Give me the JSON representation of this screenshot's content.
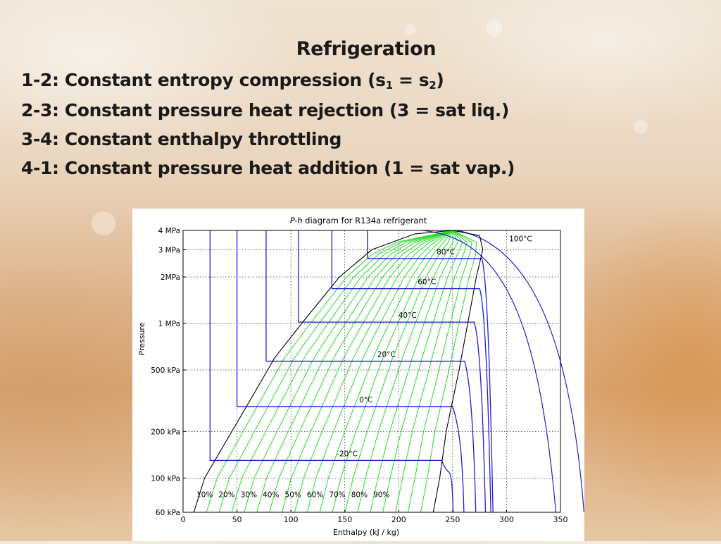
{
  "slide": {
    "title": "Refrigeration",
    "lines": [
      {
        "text": "1-2: Constant entropy compression (s",
        "s1": "1",
        "mid": " = s",
        "s2": "2",
        "end": ")"
      },
      {
        "text": "2-3: Constant pressure heat rejection (3 = sat liq.)"
      },
      {
        "text": "3-4: Constant enthalpy throttling"
      },
      {
        "text": "4-1: Constant pressure heat addition (1 = sat vap.)"
      }
    ]
  },
  "chart_data": {
    "type": "line",
    "title_italic": "P-h",
    "title_rest": " diagram for R134a refrigerant",
    "xlabel": "Enthalpy (kJ / kg)",
    "ylabel": "Pressure",
    "xlim": [
      0,
      350
    ],
    "ylim": [
      60,
      4000
    ],
    "yscale": "log",
    "grid": true,
    "x_ticks": [
      0,
      50,
      100,
      150,
      200,
      250,
      300,
      350
    ],
    "x_tick_labels": [
      "0",
      "50",
      "100",
      "150",
      "200",
      "250",
      "300",
      "350"
    ],
    "y_ticks": [
      60,
      100,
      200,
      500,
      1000,
      2000,
      3000,
      4000
    ],
    "y_tick_labels": [
      "60 kPa",
      "100 kPa",
      "200 kPa",
      "500 kPa",
      "1 MPa",
      "2MPa",
      "3 MPa",
      "4 MPa"
    ],
    "critical_point": {
      "h": 250,
      "p": 4000
    },
    "saturated_liquid": [
      [
        10,
        60
      ],
      [
        20,
        100
      ],
      [
        60,
        300
      ],
      [
        85,
        600
      ],
      [
        110,
        1000
      ],
      [
        145,
        2000
      ],
      [
        175,
        3000
      ],
      [
        215,
        3800
      ],
      [
        250,
        4000
      ]
    ],
    "saturated_vapor": [
      [
        232,
        60
      ],
      [
        238,
        100
      ],
      [
        244,
        200
      ],
      [
        256,
        500
      ],
      [
        264,
        1000
      ],
      [
        272,
        2000
      ],
      [
        278,
        3000
      ],
      [
        275,
        3700
      ],
      [
        250,
        4000
      ]
    ],
    "isotherms": [
      {
        "label": "-20°C",
        "p": 130,
        "h_liq": 25,
        "h_vap": 240
      },
      {
        "label": "0°C",
        "p": 290,
        "h_liq": 50,
        "h_vap": 250
      },
      {
        "label": "20°C",
        "p": 570,
        "h_liq": 77,
        "h_vap": 261
      },
      {
        "label": "40°C",
        "p": 1020,
        "h_liq": 107,
        "h_vap": 270
      },
      {
        "label": "60°C",
        "p": 1680,
        "h_liq": 138,
        "h_vap": 275
      },
      {
        "label": "80°C",
        "p": 2630,
        "h_liq": 171,
        "h_vap": 277
      },
      {
        "label": "100°C",
        "h": 300
      }
    ],
    "quality_labels": [
      "10%",
      "20%",
      "30%",
      "40%",
      "50%",
      "60%",
      "70%",
      "80%",
      "90%"
    ],
    "colors": {
      "isotherm": "#1f1fd6",
      "isentrope": "#22dd22",
      "dome": "#000000"
    }
  }
}
